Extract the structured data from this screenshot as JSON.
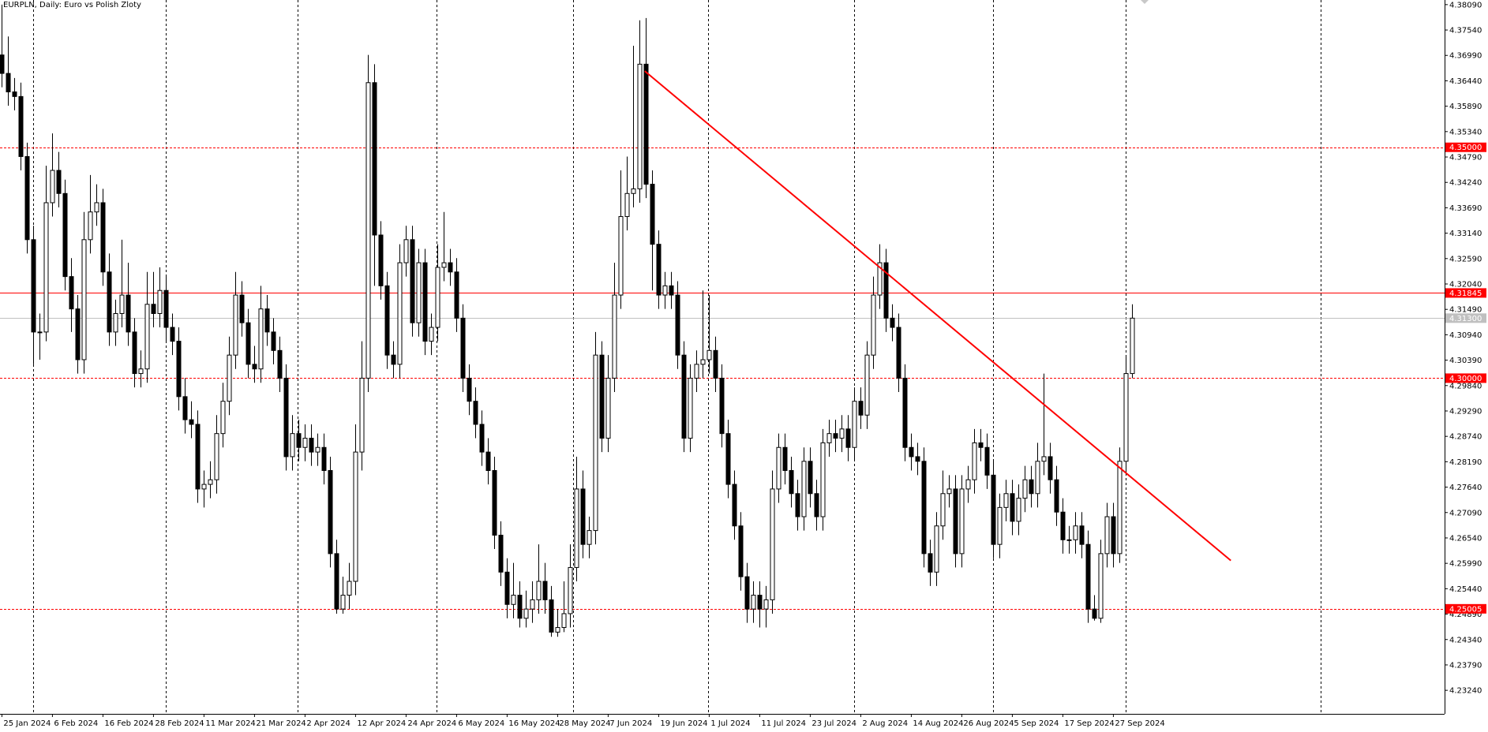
{
  "chart_data": {
    "type": "candlestick",
    "title": "EURPLN, Daily:  Euro vs Polish Zloty",
    "categories": [
      "25 Jan 2024",
      null,
      null,
      null,
      null,
      null,
      null,
      null,
      "6 Feb 2024",
      null,
      null,
      null,
      null,
      null,
      null,
      null,
      "16 Feb 2024",
      null,
      null,
      null,
      null,
      null,
      null,
      null,
      "28 Feb 2024",
      null,
      null,
      null,
      null,
      null,
      null,
      null,
      "11 Mar 2024",
      null,
      null,
      null,
      null,
      null,
      null,
      null,
      "21 Mar 2024",
      null,
      null,
      null,
      null,
      null,
      null,
      null,
      "2 Apr 2024",
      null,
      null,
      null,
      null,
      null,
      null,
      null,
      "12 Apr 2024",
      null,
      null,
      null,
      null,
      null,
      null,
      null,
      "24 Apr 2024",
      null,
      null,
      null,
      null,
      null,
      null,
      null,
      "6 May 2024",
      null,
      null,
      null,
      null,
      null,
      null,
      null,
      "16 May 2024",
      null,
      null,
      null,
      null,
      null,
      null,
      null,
      "28 May 2024",
      null,
      null,
      null,
      null,
      null,
      null,
      null,
      "7 Jun 2024",
      null,
      null,
      null,
      null,
      null,
      null,
      null,
      "19 Jun 2024",
      null,
      null,
      null,
      null,
      null,
      null,
      null,
      "1 Jul 2024",
      null,
      null,
      null,
      null,
      null,
      null,
      null,
      "11 Jul 2024",
      null,
      null,
      null,
      null,
      null,
      null,
      null,
      "23 Jul 2024",
      null,
      null,
      null,
      null,
      null,
      null,
      null,
      "2 Aug 2024",
      null,
      null,
      null,
      null,
      null,
      null,
      null,
      "14 Aug 2024",
      null,
      null,
      null,
      null,
      null,
      null,
      null,
      "26 Aug 2024",
      null,
      null,
      null,
      null,
      null,
      null,
      null,
      "5 Sep 2024",
      null,
      null,
      null,
      null,
      null,
      null,
      null,
      "17 Sep 2024",
      null,
      null,
      null,
      null,
      null,
      null,
      null,
      "27 Sep 2024",
      null,
      null,
      null
    ],
    "open": [
      4.37,
      4.366,
      4.362,
      4.361,
      4.348,
      4.33,
      4.31,
      4.31,
      4.338,
      4.345,
      4.34,
      4.322,
      4.315,
      4.304,
      4.33,
      4.336,
      4.338,
      4.323,
      4.31,
      4.314,
      4.318,
      4.31,
      4.301,
      4.302,
      4.316,
      4.314,
      4.319,
      4.311,
      4.308,
      4.296,
      4.291,
      4.29,
      4.276,
      4.277,
      4.278,
      4.288,
      4.295,
      4.305,
      4.318,
      4.312,
      4.303,
      4.302,
      4.315,
      4.31,
      4.306,
      4.3,
      4.283,
      4.288,
      4.285,
      4.287,
      4.284,
      4.285,
      4.28,
      4.262,
      4.25,
      4.253,
      4.256,
      4.284,
      4.3,
      4.364,
      4.331,
      4.32,
      4.305,
      4.303,
      4.325,
      4.33,
      4.312,
      4.325,
      4.308,
      4.311,
      4.324,
      4.325,
      4.323,
      4.313,
      4.3,
      4.295,
      4.29,
      4.284,
      4.28,
      4.266,
      4.258,
      4.251,
      4.253,
      4.248,
      4.25,
      4.252,
      4.256,
      4.252,
      4.245,
      4.246,
      4.249,
      4.259,
      4.276,
      4.264,
      4.267,
      4.305,
      4.287,
      4.3,
      4.318,
      4.335,
      4.34,
      4.341,
      4.368,
      4.342,
      4.329,
      4.318,
      4.32,
      4.318,
      4.305,
      4.287,
      4.3,
      4.303,
      4.304,
      4.306,
      4.3,
      4.288,
      4.277,
      4.268,
      4.257,
      4.25,
      4.253,
      4.25,
      4.252,
      4.276,
      4.285,
      4.28,
      4.275,
      4.27,
      4.282,
      4.275,
      4.27,
      4.286,
      4.288,
      4.287,
      4.289,
      4.285,
      4.295,
      4.292,
      4.305,
      4.318,
      4.325,
      4.313,
      4.311,
      4.3,
      4.285,
      4.283,
      4.282,
      4.262,
      4.258,
      4.268,
      4.275,
      4.276,
      4.262,
      4.276,
      4.278,
      4.286,
      4.285,
      4.279,
      4.264,
      4.272,
      4.275,
      4.269,
      4.274,
      4.278,
      4.275,
      4.282,
      4.283,
      4.278,
      4.271,
      4.265,
      4.265,
      4.268,
      4.264,
      4.25,
      4.248,
      4.262,
      4.27,
      4.262,
      4.282,
      4.301
    ],
    "high": [
      4.3809,
      4.374,
      4.365,
      4.364,
      4.351,
      4.333,
      4.314,
      4.346,
      4.353,
      4.349,
      4.343,
      4.326,
      4.318,
      4.336,
      4.344,
      4.342,
      4.341,
      4.327,
      4.317,
      4.33,
      4.325,
      4.313,
      4.306,
      4.323,
      4.323,
      4.324,
      4.322,
      4.314,
      4.311,
      4.3,
      4.295,
      4.293,
      4.28,
      4.282,
      4.292,
      4.299,
      4.309,
      4.323,
      4.321,
      4.315,
      4.307,
      4.32,
      4.318,
      4.313,
      4.309,
      4.303,
      4.292,
      4.291,
      4.29,
      4.29,
      4.288,
      4.288,
      4.283,
      4.265,
      4.257,
      4.26,
      4.29,
      4.308,
      4.37,
      4.368,
      4.334,
      4.323,
      4.308,
      4.329,
      4.333,
      4.333,
      4.328,
      4.328,
      4.314,
      4.329,
      4.336,
      4.328,
      4.326,
      4.316,
      4.303,
      4.298,
      4.293,
      4.287,
      4.283,
      4.269,
      4.261,
      4.26,
      4.256,
      4.254,
      4.256,
      4.264,
      4.26,
      4.255,
      4.25,
      4.256,
      4.264,
      4.283,
      4.28,
      4.27,
      4.31,
      4.308,
      4.305,
      4.325,
      4.345,
      4.348,
      4.372,
      4.3775,
      4.378,
      4.345,
      4.332,
      4.323,
      4.323,
      4.321,
      4.308,
      4.303,
      4.306,
      4.319,
      4.318,
      4.309,
      4.303,
      4.291,
      4.28,
      4.271,
      4.26,
      4.256,
      4.256,
      4.255,
      4.28,
      4.288,
      4.288,
      4.283,
      4.278,
      4.285,
      4.285,
      4.278,
      4.289,
      4.291,
      4.291,
      4.292,
      4.292,
      4.298,
      4.298,
      4.308,
      4.322,
      4.329,
      4.328,
      4.316,
      4.314,
      4.303,
      4.288,
      4.286,
      4.285,
      4.265,
      4.271,
      4.28,
      4.279,
      4.279,
      4.279,
      4.281,
      4.289,
      4.289,
      4.288,
      4.282,
      4.275,
      4.278,
      4.278,
      4.277,
      4.281,
      4.281,
      4.286,
      4.301,
      4.286,
      4.281,
      4.274,
      4.268,
      4.271,
      4.271,
      4.267,
      4.253,
      4.265,
      4.273,
      4.273,
      4.285,
      4.305,
      4.316
    ],
    "low": [
      4.363,
      4.359,
      4.358,
      4.345,
      4.327,
      4.303,
      4.304,
      4.308,
      4.335,
      4.337,
      4.319,
      4.31,
      4.301,
      4.301,
      4.327,
      4.333,
      4.32,
      4.307,
      4.307,
      4.311,
      4.307,
      4.298,
      4.298,
      4.299,
      4.311,
      4.311,
      4.308,
      4.305,
      4.293,
      4.288,
      4.287,
      4.273,
      4.272,
      4.274,
      4.275,
      4.285,
      4.292,
      4.302,
      4.309,
      4.3,
      4.299,
      4.299,
      4.307,
      4.303,
      4.297,
      4.28,
      4.28,
      4.282,
      4.282,
      4.281,
      4.281,
      4.277,
      4.259,
      4.249,
      4.249,
      4.25,
      4.253,
      4.28,
      4.297,
      4.32,
      4.317,
      4.302,
      4.3,
      4.3,
      4.322,
      4.309,
      4.309,
      4.305,
      4.305,
      4.308,
      4.321,
      4.32,
      4.31,
      4.297,
      4.292,
      4.287,
      4.281,
      4.277,
      4.263,
      4.255,
      4.248,
      4.248,
      4.246,
      4.246,
      4.247,
      4.249,
      4.249,
      4.244,
      4.244,
      4.245,
      4.246,
      4.256,
      4.261,
      4.261,
      4.264,
      4.284,
      4.284,
      4.297,
      4.315,
      4.332,
      4.337,
      4.338,
      4.339,
      4.319,
      4.315,
      4.315,
      4.315,
      4.302,
      4.284,
      4.284,
      4.297,
      4.3,
      4.301,
      4.297,
      4.285,
      4.274,
      4.265,
      4.254,
      4.247,
      4.247,
      4.246,
      4.246,
      4.249,
      4.273,
      4.277,
      4.272,
      4.267,
      4.267,
      4.272,
      4.267,
      4.267,
      4.283,
      4.284,
      4.284,
      4.282,
      4.282,
      4.289,
      4.289,
      4.302,
      4.315,
      4.31,
      4.308,
      4.297,
      4.282,
      4.28,
      4.279,
      4.259,
      4.255,
      4.255,
      4.265,
      4.272,
      4.259,
      4.259,
      4.273,
      4.275,
      4.282,
      4.276,
      4.261,
      4.261,
      4.269,
      4.266,
      4.266,
      4.271,
      4.272,
      4.272,
      4.279,
      4.275,
      4.268,
      4.262,
      4.262,
      4.262,
      4.261,
      4.247,
      4.2475,
      4.247,
      4.259,
      4.259,
      4.26,
      4.279,
      4.3
    ],
    "close": [
      4.366,
      4.362,
      4.361,
      4.348,
      4.33,
      4.31,
      4.31,
      4.338,
      4.345,
      4.34,
      4.322,
      4.315,
      4.304,
      4.33,
      4.336,
      4.338,
      4.323,
      4.31,
      4.314,
      4.318,
      4.31,
      4.301,
      4.302,
      4.316,
      4.314,
      4.319,
      4.311,
      4.308,
      4.296,
      4.291,
      4.29,
      4.276,
      4.277,
      4.278,
      4.288,
      4.295,
      4.305,
      4.318,
      4.312,
      4.303,
      4.302,
      4.315,
      4.31,
      4.306,
      4.3,
      4.283,
      4.288,
      4.285,
      4.287,
      4.284,
      4.285,
      4.28,
      4.262,
      4.25,
      4.253,
      4.256,
      4.284,
      4.3,
      4.364,
      4.331,
      4.32,
      4.305,
      4.303,
      4.325,
      4.33,
      4.312,
      4.325,
      4.308,
      4.311,
      4.324,
      4.325,
      4.323,
      4.313,
      4.3,
      4.295,
      4.29,
      4.284,
      4.28,
      4.266,
      4.258,
      4.251,
      4.253,
      4.248,
      4.25,
      4.252,
      4.256,
      4.252,
      4.245,
      4.246,
      4.249,
      4.259,
      4.276,
      4.264,
      4.267,
      4.305,
      4.287,
      4.3,
      4.318,
      4.335,
      4.34,
      4.341,
      4.368,
      4.342,
      4.329,
      4.318,
      4.32,
      4.318,
      4.305,
      4.287,
      4.3,
      4.303,
      4.304,
      4.306,
      4.3,
      4.288,
      4.277,
      4.268,
      4.257,
      4.25,
      4.253,
      4.25,
      4.252,
      4.276,
      4.285,
      4.28,
      4.275,
      4.27,
      4.282,
      4.275,
      4.27,
      4.286,
      4.288,
      4.287,
      4.289,
      4.285,
      4.295,
      4.292,
      4.305,
      4.318,
      4.325,
      4.313,
      4.311,
      4.3,
      4.285,
      4.283,
      4.282,
      4.262,
      4.258,
      4.268,
      4.275,
      4.276,
      4.262,
      4.276,
      4.278,
      4.286,
      4.285,
      4.279,
      4.264,
      4.272,
      4.275,
      4.269,
      4.274,
      4.278,
      4.275,
      4.282,
      4.283,
      4.278,
      4.271,
      4.265,
      4.265,
      4.268,
      4.264,
      4.25,
      4.248,
      4.262,
      4.27,
      4.262,
      4.282,
      4.301,
      4.313
    ],
    "up_color": "#ffffff",
    "down_color": "#000000",
    "xlim": [
      -0.3,
      228.45
    ],
    "ylim": [
      4.2273,
      4.3819
    ],
    "yticks": [
      {
        "value": 4.3809,
        "label": "4.38090"
      },
      {
        "value": 4.3754,
        "label": "4.37540"
      },
      {
        "value": 4.3699,
        "label": "4.36990"
      },
      {
        "value": 4.3644,
        "label": "4.36440"
      },
      {
        "value": 4.3589,
        "label": "4.35890"
      },
      {
        "value": 4.3534,
        "label": "4.35340"
      },
      {
        "value": 4.3479,
        "label": "4.34790"
      },
      {
        "value": 4.3424,
        "label": "4.34240"
      },
      {
        "value": 4.3369,
        "label": "4.33690"
      },
      {
        "value": 4.3314,
        "label": "4.33140"
      },
      {
        "value": 4.3259,
        "label": "4.32590"
      },
      {
        "value": 4.3204,
        "label": "4.32040"
      },
      {
        "value": 4.3149,
        "label": "4.31490"
      },
      {
        "value": 4.3094,
        "label": "4.30940"
      },
      {
        "value": 4.3039,
        "label": "4.30390"
      },
      {
        "value": 4.2984,
        "label": "4.29840"
      },
      {
        "value": 4.2929,
        "label": "4.29290"
      },
      {
        "value": 4.2874,
        "label": "4.28740"
      },
      {
        "value": 4.2819,
        "label": "4.28190"
      },
      {
        "value": 4.2764,
        "label": "4.27640"
      },
      {
        "value": 4.2709,
        "label": "4.27090"
      },
      {
        "value": 4.2654,
        "label": "4.26540"
      },
      {
        "value": 4.2599,
        "label": "4.25990"
      },
      {
        "value": 4.2544,
        "label": "4.25440"
      },
      {
        "value": 4.2489,
        "label": "4.24890"
      },
      {
        "value": 4.2434,
        "label": "4.24340"
      },
      {
        "value": 4.2379,
        "label": "4.23790"
      },
      {
        "value": 4.2324,
        "label": "4.23240"
      }
    ],
    "levels": [
      {
        "value": 4.35,
        "label": "4.35000",
        "color": "#ff0000",
        "style": "dotted"
      },
      {
        "value": 4.31845,
        "label": "4.31845",
        "color": "#ff0000",
        "style": "solid"
      },
      {
        "value": 4.313,
        "label": "4.31300",
        "color": "#c0c0c0",
        "style": "solid"
      },
      {
        "value": 4.3,
        "label": "4.30000",
        "color": "#ff0000",
        "style": "dotted"
      },
      {
        "value": 4.25005,
        "label": "4.25005",
        "color": "#ff0000",
        "style": "dotted"
      }
    ],
    "trendline": {
      "x": [
        101.8,
        194.6
      ],
      "y": [
        4.3665,
        4.2605
      ],
      "color": "#ff0000"
    },
    "grid": false
  }
}
